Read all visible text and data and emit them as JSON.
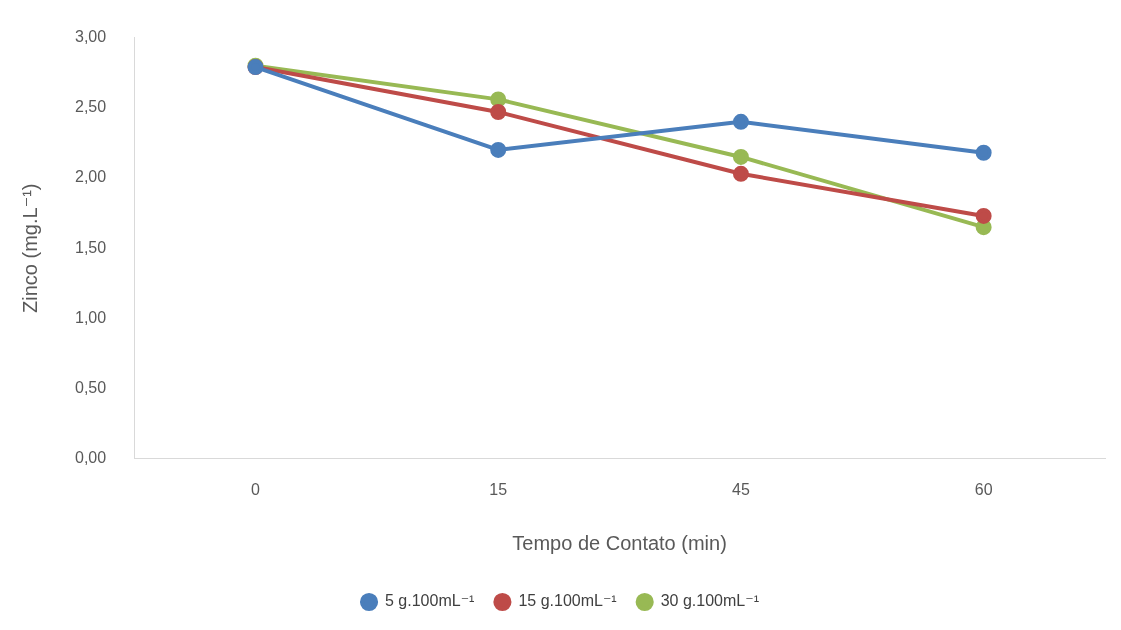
{
  "chart_data": {
    "type": "line",
    "xlabel": "Tempo de Contato (min)",
    "ylabel": "Zinco (mg.L⁻¹)",
    "categories": [
      "0",
      "15",
      "45",
      "60"
    ],
    "series": [
      {
        "name": "5 g.100mL⁻¹",
        "color": "#4a7ebb",
        "values": [
          2.79,
          2.2,
          2.4,
          2.18
        ]
      },
      {
        "name": "15 g.100mL⁻¹",
        "color": "#be4b48",
        "values": [
          2.79,
          2.47,
          2.03,
          1.73
        ]
      },
      {
        "name": "30 g.100mL⁻¹",
        "color": "#98b954",
        "values": [
          2.8,
          2.56,
          2.15,
          1.65
        ]
      }
    ],
    "ylim": [
      0,
      3
    ],
    "yticks": [
      {
        "value": 0,
        "label": "0,00"
      },
      {
        "value": 0.5,
        "label": "0,50"
      },
      {
        "value": 1,
        "label": "1,00"
      },
      {
        "value": 1.5,
        "label": "1,50"
      },
      {
        "value": 2,
        "label": "2,00"
      },
      {
        "value": 2.5,
        "label": "2,50"
      },
      {
        "value": 3,
        "label": "3,00"
      }
    ],
    "grid": false,
    "legend": "bottom",
    "marker": "circle",
    "line_style": "solid"
  }
}
